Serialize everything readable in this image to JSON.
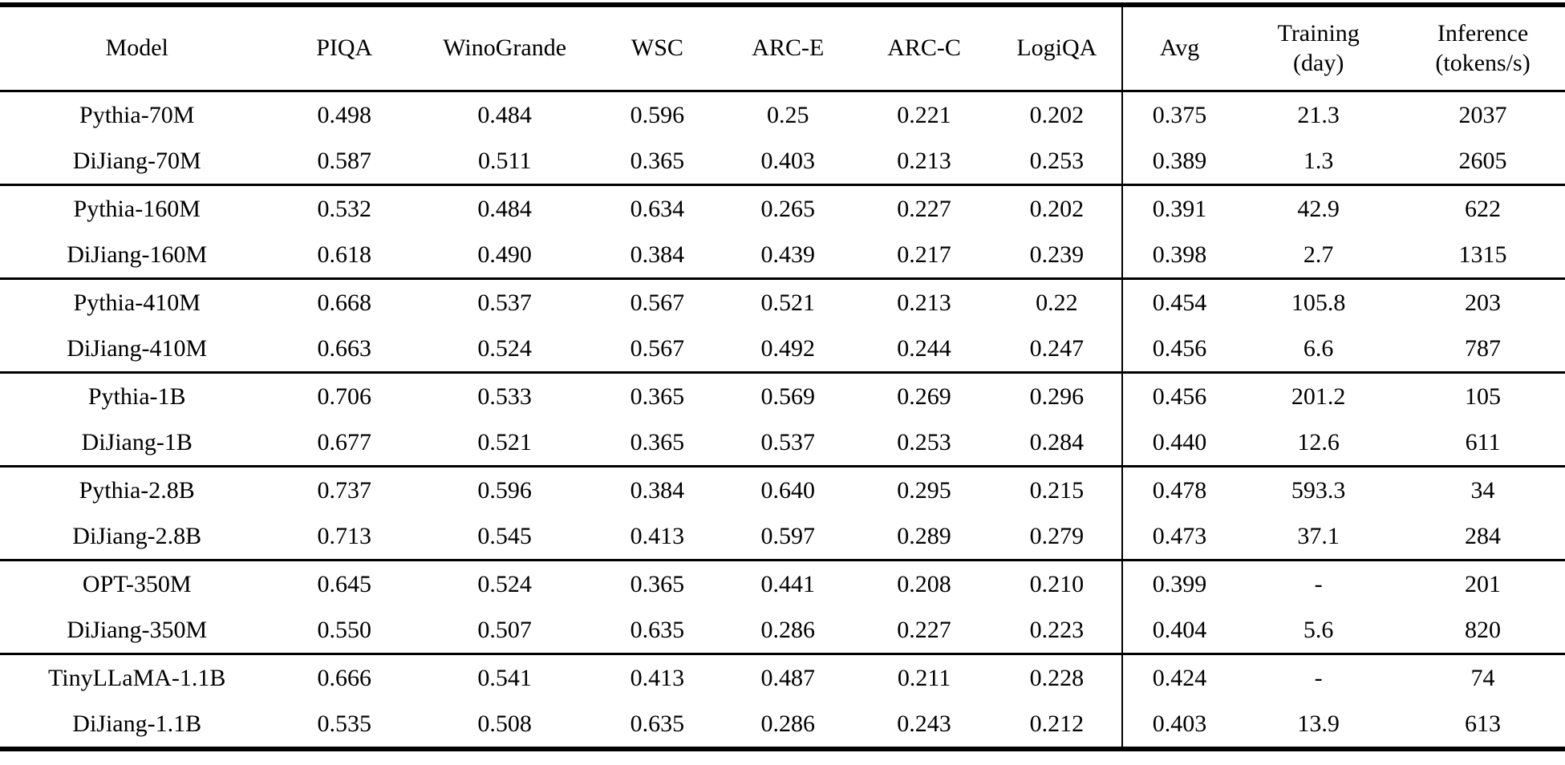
{
  "accent_colors": {
    "text": "#000000",
    "background": "#ffffff",
    "rule": "#000000"
  },
  "chart_data": {
    "type": "table",
    "columns": [
      {
        "id": "model",
        "label": "Model"
      },
      {
        "id": "piqa",
        "label": "PIQA"
      },
      {
        "id": "winogrande",
        "label": "WinoGrande"
      },
      {
        "id": "wsc",
        "label": "WSC"
      },
      {
        "id": "arc_e",
        "label": "ARC-E"
      },
      {
        "id": "arc_c",
        "label": "ARC-C"
      },
      {
        "id": "logiqa",
        "label": "LogiQA"
      },
      {
        "id": "avg",
        "label": "Avg"
      },
      {
        "id": "training_day",
        "label": "Training\n(day)"
      },
      {
        "id": "inference_tokens_per_s",
        "label": "Inference\n(tokens/s)"
      }
    ],
    "groups": [
      {
        "rows": [
          {
            "model": "Pythia-70M",
            "values": [
              "0.498",
              "0.484",
              "0.596",
              "0.25",
              "0.221",
              "0.202",
              "0.375",
              "21.3",
              "2037"
            ]
          },
          {
            "model": "DiJiang-70M",
            "values": [
              "0.587",
              "0.511",
              "0.365",
              "0.403",
              "0.213",
              "0.253",
              "0.389",
              "1.3",
              "2605"
            ]
          }
        ]
      },
      {
        "rows": [
          {
            "model": "Pythia-160M",
            "values": [
              "0.532",
              "0.484",
              "0.634",
              "0.265",
              "0.227",
              "0.202",
              "0.391",
              "42.9",
              "622"
            ]
          },
          {
            "model": "DiJiang-160M",
            "values": [
              "0.618",
              "0.490",
              "0.384",
              "0.439",
              "0.217",
              "0.239",
              "0.398",
              "2.7",
              "1315"
            ]
          }
        ]
      },
      {
        "rows": [
          {
            "model": "Pythia-410M",
            "values": [
              "0.668",
              "0.537",
              "0.567",
              "0.521",
              "0.213",
              "0.22",
              "0.454",
              "105.8",
              "203"
            ]
          },
          {
            "model": "DiJiang-410M",
            "values": [
              "0.663",
              "0.524",
              "0.567",
              "0.492",
              "0.244",
              "0.247",
              "0.456",
              "6.6",
              "787"
            ]
          }
        ]
      },
      {
        "rows": [
          {
            "model": "Pythia-1B",
            "values": [
              "0.706",
              "0.533",
              "0.365",
              "0.569",
              "0.269",
              "0.296",
              "0.456",
              "201.2",
              "105"
            ]
          },
          {
            "model": "DiJiang-1B",
            "values": [
              "0.677",
              "0.521",
              "0.365",
              "0.537",
              "0.253",
              "0.284",
              "0.440",
              "12.6",
              "611"
            ]
          }
        ]
      },
      {
        "rows": [
          {
            "model": "Pythia-2.8B",
            "values": [
              "0.737",
              "0.596",
              "0.384",
              "0.640",
              "0.295",
              "0.215",
              "0.478",
              "593.3",
              "34"
            ]
          },
          {
            "model": "DiJiang-2.8B",
            "values": [
              "0.713",
              "0.545",
              "0.413",
              "0.597",
              "0.289",
              "0.279",
              "0.473",
              "37.1",
              "284"
            ]
          }
        ]
      },
      {
        "rows": [
          {
            "model": "OPT-350M",
            "values": [
              "0.645",
              "0.524",
              "0.365",
              "0.441",
              "0.208",
              "0.210",
              "0.399",
              "-",
              "201"
            ]
          },
          {
            "model": "DiJiang-350M",
            "values": [
              "0.550",
              "0.507",
              "0.635",
              "0.286",
              "0.227",
              "0.223",
              "0.404",
              "5.6",
              "820"
            ]
          }
        ]
      },
      {
        "rows": [
          {
            "model": "TinyLLaMA-1.1B",
            "values": [
              "0.666",
              "0.541",
              "0.413",
              "0.487",
              "0.211",
              "0.228",
              "0.424",
              "-",
              "74"
            ]
          },
          {
            "model": "DiJiang-1.1B",
            "values": [
              "0.535",
              "0.508",
              "0.635",
              "0.286",
              "0.243",
              "0.212",
              "0.403",
              "13.9",
              "613"
            ]
          }
        ]
      }
    ]
  }
}
